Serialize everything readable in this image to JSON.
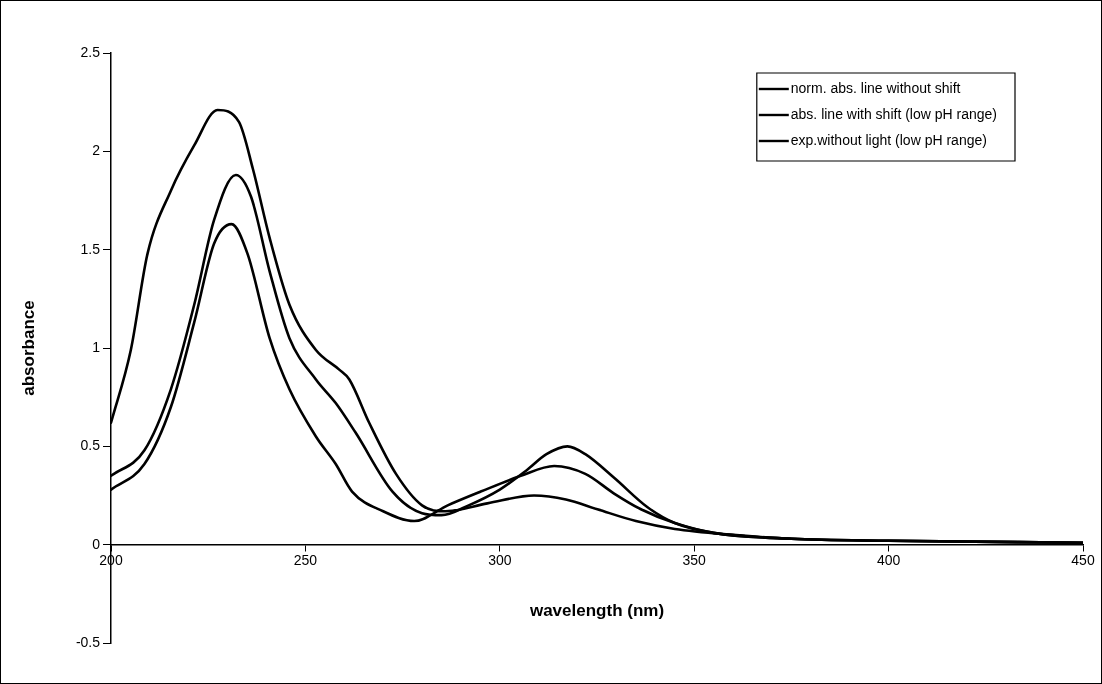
{
  "chart_data": {
    "type": "line",
    "xlabel": "wavelength (nm)",
    "ylabel": "absorbance",
    "xlim": [
      200,
      450
    ],
    "xticks": [
      200,
      250,
      300,
      350,
      400,
      450
    ],
    "ylim": [
      -0.5,
      2.5
    ],
    "yticks": [
      -0.5,
      0,
      0.5,
      1,
      1.5,
      2,
      2.5
    ],
    "grid": false,
    "legend": "top right",
    "marker": "none",
    "line_style": "solid",
    "series": [
      {
        "name": "norm. abs. line without shift",
        "color": "#000000",
        "x": [
          200,
          208.6,
          215.4,
          221.4,
          226.5,
          232.1,
          236,
          240.8,
          245.9,
          252.7,
          257.8,
          262.9,
          272.4,
          280,
          285,
          292,
          300,
          307,
          312,
          317.4,
          322,
          329.4,
          338,
          345,
          355,
          375,
          400,
          450
        ],
        "values": [
          0.35,
          0.48,
          0.79,
          1.22,
          1.65,
          1.88,
          1.77,
          1.39,
          1.05,
          0.84,
          0.72,
          0.57,
          0.27,
          0.16,
          0.15,
          0.2,
          0.28,
          0.38,
          0.46,
          0.5,
          0.46,
          0.34,
          0.19,
          0.11,
          0.06,
          0.03,
          0.02,
          0.01
        ]
      },
      {
        "name": "abs. line with shift (low pH range)",
        "color": "#000000",
        "x": [
          200,
          205.1,
          209.4,
          215.4,
          221.4,
          227.4,
          232.9,
          236.5,
          240.8,
          245.9,
          252.7,
          258.7,
          261.3,
          266.4,
          273.3,
          280,
          286,
          296.8,
          308.8,
          317,
          325.1,
          335,
          345,
          360,
          375,
          400,
          450
        ],
        "values": [
          0.62,
          0.99,
          1.48,
          1.8,
          2.03,
          2.21,
          2.15,
          1.91,
          1.56,
          1.22,
          0.99,
          0.89,
          0.84,
          0.62,
          0.36,
          0.2,
          0.17,
          0.21,
          0.25,
          0.23,
          0.18,
          0.12,
          0.08,
          0.05,
          0.03,
          0.02,
          0.01
        ]
      },
      {
        "name": "exp.without light (low pH range)",
        "color": "#000000",
        "x": [
          200,
          208.6,
          215.4,
          221.4,
          226.5,
          231,
          235.1,
          240.8,
          245.9,
          252.7,
          257.8,
          262,
          270,
          278,
          286.6,
          295.1,
          305.4,
          314,
          322,
          329.4,
          336.3,
          345,
          355,
          375,
          400,
          450
        ],
        "values": [
          0.28,
          0.41,
          0.7,
          1.13,
          1.53,
          1.63,
          1.48,
          1.05,
          0.79,
          0.55,
          0.41,
          0.27,
          0.17,
          0.12,
          0.2,
          0.27,
          0.35,
          0.4,
          0.36,
          0.26,
          0.18,
          0.11,
          0.06,
          0.03,
          0.02,
          0.01
        ]
      }
    ]
  }
}
